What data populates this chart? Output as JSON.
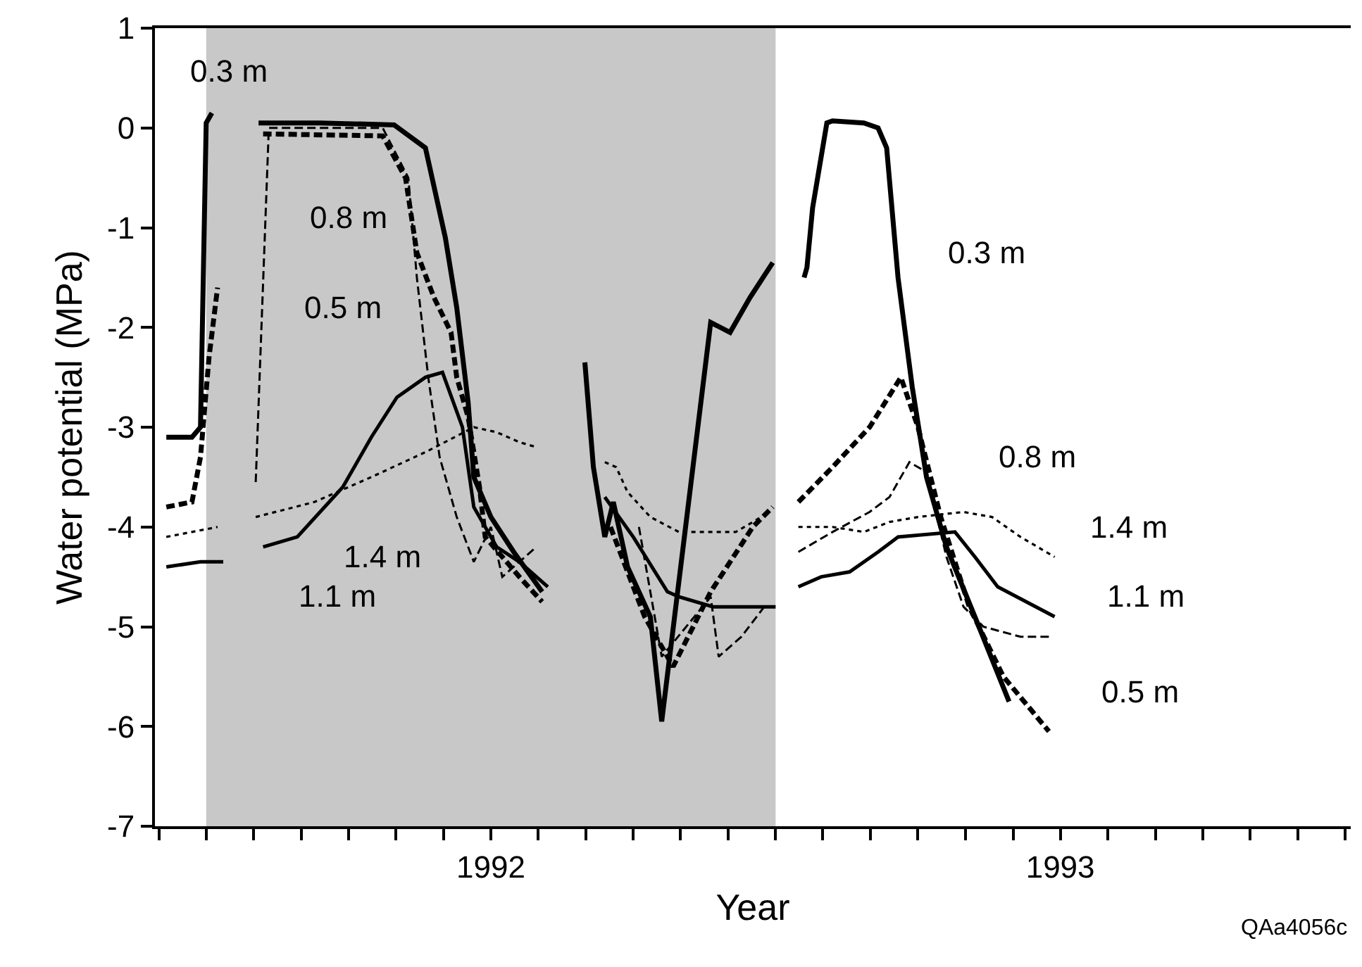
{
  "chart_data": {
    "type": "line",
    "xlabel": "Year",
    "ylabel": "Water potential (MPa)",
    "xlim": [
      1991.91,
      1994.01
    ],
    "ylim": [
      -7,
      1
    ],
    "yticks": [
      -7,
      -6,
      -5,
      -4,
      -3,
      -2,
      -1,
      0,
      1
    ],
    "xticks": [
      {
        "value": 1991.917,
        "label": null
      },
      {
        "value": 1992,
        "label": null
      },
      {
        "value": 1992.083,
        "label": null
      },
      {
        "value": 1992.167,
        "label": null
      },
      {
        "value": 1992.25,
        "label": null
      },
      {
        "value": 1992.333,
        "label": null
      },
      {
        "value": 1992.417,
        "label": null
      },
      {
        "value": 1992.5,
        "label": "1992"
      },
      {
        "value": 1992.583,
        "label": null
      },
      {
        "value": 1992.667,
        "label": null
      },
      {
        "value": 1992.75,
        "label": null
      },
      {
        "value": 1992.833,
        "label": null
      },
      {
        "value": 1992.917,
        "label": null
      },
      {
        "value": 1993,
        "label": null
      },
      {
        "value": 1993.083,
        "label": null
      },
      {
        "value": 1993.167,
        "label": null
      },
      {
        "value": 1993.25,
        "label": null
      },
      {
        "value": 1993.333,
        "label": null
      },
      {
        "value": 1993.417,
        "label": null
      },
      {
        "value": 1993.5,
        "label": "1993"
      },
      {
        "value": 1993.583,
        "label": null
      },
      {
        "value": 1993.667,
        "label": null
      },
      {
        "value": 1993.75,
        "label": null
      },
      {
        "value": 1993.833,
        "label": null
      },
      {
        "value": 1993.917,
        "label": null
      },
      {
        "value": 1994,
        "label": null
      }
    ],
    "grid": false,
    "marker": "none",
    "bands": [
      {
        "axis": "x",
        "from": 1992,
        "to": 1993,
        "label": null,
        "color": "#c8c8c8"
      }
    ],
    "series": [
      {
        "color": "#000000",
        "line_style": "solid",
        "x": [
          1991.93,
          1991.975,
          1991.99,
          1992.0,
          1992.01,
          null,
          1992.092,
          1992.2,
          1992.33,
          1992.385,
          1992.42,
          1992.44,
          1992.46,
          1992.47,
          1992.5,
          1992.54,
          1992.59,
          null,
          1992.665,
          1992.68,
          1992.7,
          1992.715,
          1992.74,
          1992.78,
          1992.8,
          1992.886,
          1992.92,
          1992.955,
          1992.995,
          null,
          1993.05,
          1993.055,
          1993.065,
          1993.09,
          1993.1,
          1993.155,
          1993.18,
          1993.195,
          1993.215,
          1993.24,
          1993.265,
          1993.3,
          1993.35,
          1993.41
        ],
        "values": [
          -3.1,
          -3.1,
          -3.0,
          0.05,
          0.15,
          null,
          0.05,
          0.05,
          0.03,
          -0.2,
          -1.1,
          -1.8,
          -2.75,
          -3.5,
          -3.9,
          -4.25,
          -4.65,
          null,
          -2.35,
          -3.4,
          -4.1,
          -3.75,
          -4.4,
          -4.9,
          -5.95,
          -1.95,
          -2.05,
          -1.7,
          -1.35,
          null,
          -1.5,
          -1.4,
          -0.8,
          0.05,
          0.07,
          0.05,
          0.0,
          -0.2,
          -1.5,
          -2.6,
          -3.5,
          -4.2,
          -4.9,
          -5.75
        ]
      },
      {
        "color": "#000000",
        "line_style": "dashed",
        "x": [
          1991.93,
          1991.975,
          1991.99,
          1992.005,
          1992.02,
          null,
          1992.1,
          1992.31,
          1992.35,
          1992.37,
          1992.4,
          1992.43,
          1992.44,
          1992.46,
          1992.48,
          1992.49,
          1992.55,
          1992.59,
          null,
          1992.71,
          1992.77,
          1992.82,
          1992.886,
          1992.96,
          1992.995,
          null,
          1993.04,
          1993.1,
          1993.165,
          1993.22,
          1993.25,
          1993.29,
          1993.34,
          1993.4,
          1993.48
        ],
        "values": [
          -3.8,
          -3.75,
          -3.3,
          -2.3,
          -1.6,
          null,
          -0.06,
          -0.08,
          -0.5,
          -1.25,
          -1.7,
          -2.05,
          -2.5,
          -2.9,
          -3.6,
          -4.1,
          -4.5,
          -4.75,
          null,
          -4.0,
          -4.9,
          -5.4,
          -4.65,
          -4.0,
          -3.8,
          null,
          -3.75,
          -3.4,
          -3.0,
          -2.5,
          -3.0,
          -3.9,
          -4.8,
          -5.5,
          -6.05
        ]
      },
      {
        "color": "#000000",
        "line_style": "dashed",
        "x": [
          1992.087,
          1992.11,
          1992.31,
          1992.355,
          1992.37,
          1992.39,
          1992.41,
          1992.44,
          1992.47,
          1992.5,
          1992.52,
          1992.58,
          null,
          1992.76,
          1992.8,
          1992.886,
          1992.9,
          1992.94,
          1992.98,
          null,
          1993.04,
          1993.1,
          1993.165,
          1993.2,
          1993.235,
          1993.265,
          1993.3,
          1993.33,
          1993.365,
          1993.43,
          1993.485
        ],
        "values": [
          -3.55,
          0.0,
          0.0,
          -0.5,
          -1.5,
          -2.5,
          -3.3,
          -3.9,
          -4.35,
          -4.0,
          -4.5,
          -4.2,
          null,
          -4.0,
          -5.3,
          -4.7,
          -5.3,
          -5.1,
          -4.8,
          null,
          -4.25,
          -4.05,
          -3.85,
          -3.7,
          -3.35,
          -3.45,
          -4.3,
          -4.8,
          -5.0,
          -5.1,
          -5.1
        ]
      },
      {
        "color": "#000000",
        "line_style": "solid",
        "x": [
          1991.93,
          1991.99,
          1992.03,
          null,
          1992.1,
          1992.16,
          1992.24,
          1992.29,
          1992.335,
          1992.385,
          1992.415,
          1992.45,
          1992.47,
          1992.51,
          1992.55,
          1992.6,
          null,
          1992.7,
          1992.75,
          1992.81,
          1992.83,
          1992.89,
          1993.0,
          null,
          1993.04,
          1993.08,
          1993.13,
          1993.18,
          1993.215,
          1993.315,
          1993.35,
          1993.39,
          1993.49
        ],
        "values": [
          -4.4,
          -4.35,
          -4.35,
          null,
          -4.2,
          -4.1,
          -3.6,
          -3.1,
          -2.7,
          -2.5,
          -2.45,
          -3.0,
          -3.8,
          -4.2,
          -4.35,
          -4.6,
          null,
          -3.7,
          -4.1,
          -4.65,
          -4.7,
          -4.8,
          -4.8,
          null,
          -4.6,
          -4.5,
          -4.45,
          -4.25,
          -4.1,
          -4.05,
          -4.3,
          -4.6,
          -4.9
        ]
      },
      {
        "color": "#000000",
        "line_style": "dotted",
        "x": [
          1991.93,
          1991.975,
          1992.02,
          null,
          1992.087,
          1992.19,
          1992.29,
          1992.385,
          1992.47,
          1992.51,
          1992.55,
          1992.58,
          null,
          1992.7,
          1992.72,
          1992.74,
          1992.78,
          1992.83,
          1992.93,
          1992.99,
          null,
          1993.04,
          1993.1,
          1993.155,
          1993.2,
          1993.25,
          1993.33,
          1993.38,
          1993.43,
          1993.49
        ],
        "values": [
          -4.1,
          -4.05,
          -4.0,
          null,
          -3.9,
          -3.75,
          -3.5,
          -3.25,
          -3.0,
          -3.05,
          -3.15,
          -3.2,
          null,
          -3.35,
          -3.4,
          -3.65,
          -3.9,
          -4.05,
          -4.05,
          -3.85,
          null,
          -4.0,
          -4.0,
          -4.05,
          -3.95,
          -3.9,
          -3.85,
          -3.9,
          -4.1,
          -4.3
        ]
      }
    ],
    "annotations": [
      "0.3 m",
      "0.8 m",
      "0.5 m",
      "1.4 m",
      "1.1 m",
      "0.3 m",
      "0.8 m",
      "1.4 m",
      "1.1 m",
      "0.5 m",
      "QAa4056c"
    ]
  }
}
